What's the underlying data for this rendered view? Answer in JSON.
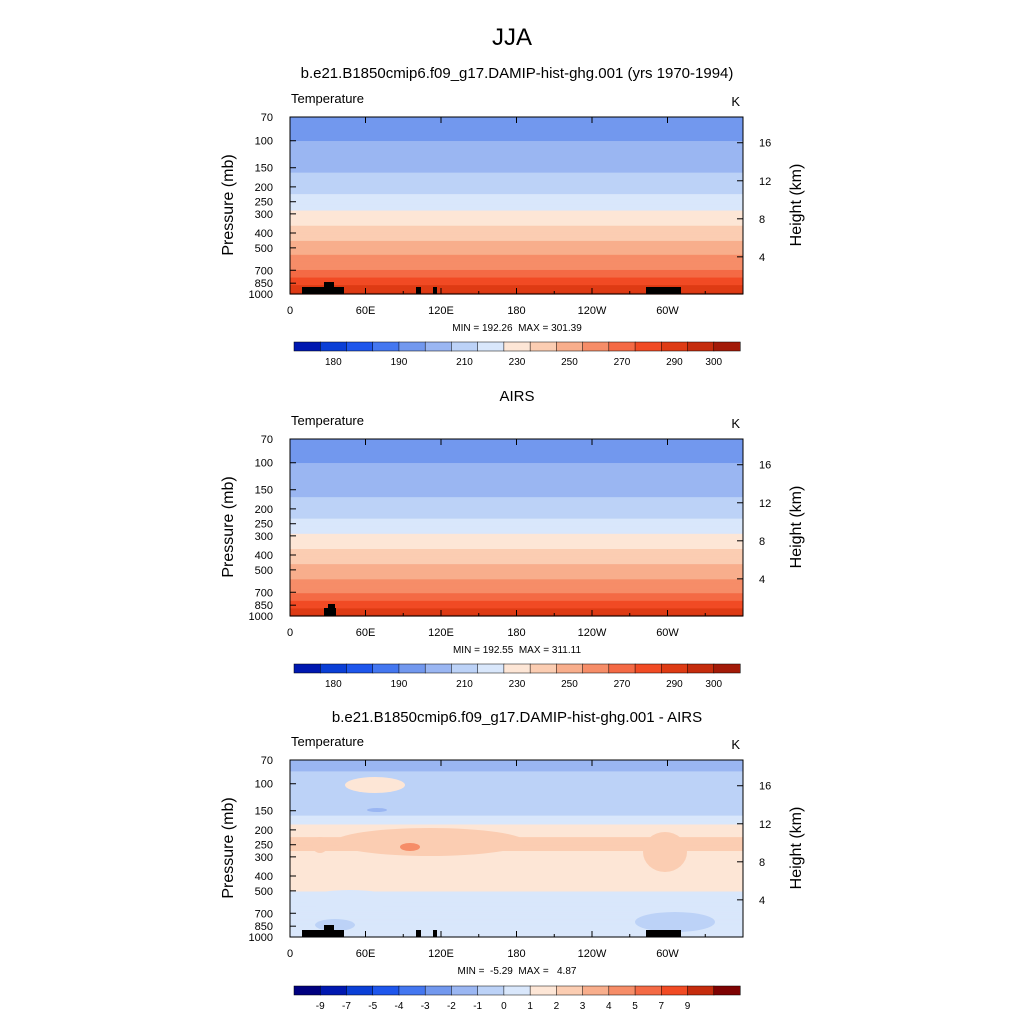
{
  "figure": {
    "season": "JJA"
  },
  "chart_data": [
    {
      "type": "heatmap",
      "title": "b.e21.B1850cmip6.f09_g17.DAMIP-hist-ghg.001 (yrs 1970-1994)",
      "variable": "Temperature",
      "units": "K",
      "ylabel": "Pressure (mb)",
      "ylabel_right": "Height (km)",
      "x_ticks": [
        "0",
        "60E",
        "120E",
        "180",
        "120W",
        "60W"
      ],
      "y_ticks": [
        "70",
        "100",
        "150",
        "200",
        "250",
        "300",
        "400",
        "500",
        "700",
        "850",
        "1000"
      ],
      "y_right_ticks": [
        "16",
        "12",
        "8",
        "4"
      ],
      "stats_text": "MIN = 192.26  MAX = 301.39",
      "min": 192.26,
      "max": 301.39,
      "colorbar_labels": [
        "180",
        "190",
        "210",
        "230",
        "250",
        "270",
        "290",
        "300"
      ],
      "level_values": [
        [
          70,
          205
        ],
        [
          100,
          210
        ],
        [
          150,
          218
        ],
        [
          200,
          226
        ],
        [
          250,
          234
        ],
        [
          300,
          242
        ],
        [
          400,
          255
        ],
        [
          500,
          265
        ],
        [
          700,
          280
        ],
        [
          850,
          289
        ],
        [
          1000,
          296
        ]
      ]
    },
    {
      "type": "heatmap",
      "title": "AIRS",
      "variable": "Temperature",
      "units": "K",
      "ylabel": "Pressure (mb)",
      "ylabel_right": "Height (km)",
      "x_ticks": [
        "0",
        "60E",
        "120E",
        "180",
        "120W",
        "60W"
      ],
      "y_ticks": [
        "70",
        "100",
        "150",
        "200",
        "250",
        "300",
        "400",
        "500",
        "700",
        "850",
        "1000"
      ],
      "y_right_ticks": [
        "16",
        "12",
        "8",
        "4"
      ],
      "stats_text": "MIN = 192.55  MAX = 311.11",
      "min": 192.55,
      "max": 311.11,
      "colorbar_labels": [
        "180",
        "190",
        "210",
        "230",
        "250",
        "270",
        "290",
        "300"
      ],
      "level_values": [
        [
          70,
          206
        ],
        [
          100,
          210
        ],
        [
          150,
          217
        ],
        [
          200,
          225
        ],
        [
          250,
          233
        ],
        [
          300,
          241
        ],
        [
          400,
          254
        ],
        [
          500,
          264
        ],
        [
          700,
          279
        ],
        [
          850,
          288
        ],
        [
          1000,
          296
        ]
      ]
    },
    {
      "type": "heatmap",
      "title": "b.e21.B1850cmip6.f09_g17.DAMIP-hist-ghg.001 - AIRS",
      "variable": "Temperature",
      "units": "K",
      "ylabel": "Pressure (mb)",
      "ylabel_right": "Height (km)",
      "x_ticks": [
        "0",
        "60E",
        "120E",
        "180",
        "120W",
        "60W"
      ],
      "y_ticks": [
        "70",
        "100",
        "150",
        "200",
        "250",
        "300",
        "400",
        "500",
        "700",
        "850",
        "1000"
      ],
      "y_right_ticks": [
        "16",
        "12",
        "8",
        "4"
      ],
      "stats_text": "MIN =  -5.29  MAX =   4.87",
      "min": -5.29,
      "max": 4.87,
      "colorbar_labels": [
        "-9",
        "-7",
        "-5",
        "-4",
        "-3",
        "-2",
        "-1",
        "0",
        "1",
        "2",
        "3",
        "4",
        "5",
        "7",
        "9"
      ],
      "level_values": [
        [
          70,
          -1.5
        ],
        [
          100,
          -0.5
        ],
        [
          150,
          -0.5
        ],
        [
          200,
          1.5
        ],
        [
          250,
          2.5
        ],
        [
          300,
          1.5
        ],
        [
          400,
          1.5
        ],
        [
          500,
          1.0
        ],
        [
          700,
          0.5
        ],
        [
          850,
          0.5
        ],
        [
          1000,
          1.0
        ]
      ]
    }
  ],
  "colors": {
    "full_field": [
      "#00007f",
      "#0018b0",
      "#0a3fd6",
      "#1e56ec",
      "#4477f0",
      "#7298ee",
      "#9ab6f2",
      "#bcd2f7",
      "#d9e7fb",
      "#fde6d6",
      "#fbcdb2",
      "#f8ae8c",
      "#f68d68",
      "#f46a45",
      "#f14b24",
      "#de3b14",
      "#c52c0d",
      "#a31a08",
      "#7e0303"
    ],
    "difference": [
      "#00007f",
      "#0018b0",
      "#0a3fd6",
      "#1e56ec",
      "#4477f0",
      "#7298ee",
      "#9ab6f2",
      "#bcd2f7",
      "#d9e7fb",
      "#fde6d6",
      "#fbcdb2",
      "#f8ae8c",
      "#f68d68",
      "#f46a45",
      "#f14b24",
      "#c52c0d",
      "#7e0303"
    ],
    "topography": "#000000"
  }
}
